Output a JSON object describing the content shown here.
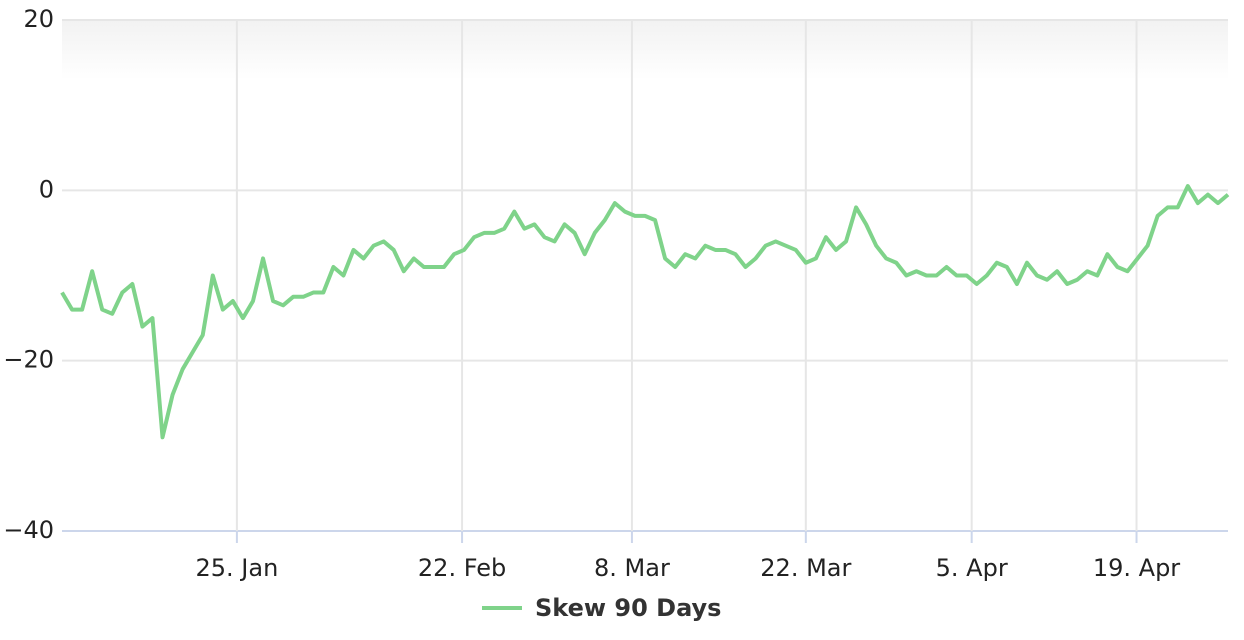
{
  "chart_data": {
    "type": "line",
    "x": [
      0,
      1,
      2,
      3,
      4,
      5,
      6,
      7,
      8,
      9,
      10,
      11,
      12,
      13,
      14,
      15,
      16,
      17,
      18,
      19,
      20,
      21,
      22,
      23,
      24,
      25,
      26,
      27,
      28,
      29,
      30,
      31,
      32,
      33,
      34,
      35,
      36,
      37,
      38,
      39,
      40,
      41,
      42,
      43,
      44,
      45,
      46,
      47,
      48,
      49,
      50,
      51,
      52,
      53,
      54,
      55,
      56,
      57,
      58,
      59,
      60,
      61,
      62,
      63,
      64,
      65,
      66,
      67,
      68,
      69,
      70,
      71,
      72,
      73,
      74,
      75,
      76,
      77,
      78,
      79,
      80,
      81,
      82,
      83,
      84,
      85,
      86,
      87,
      88,
      89,
      90,
      91,
      92,
      93,
      94,
      95,
      96,
      97,
      98,
      99,
      100,
      101,
      102,
      103,
      104,
      105,
      106,
      107,
      108,
      109,
      110,
      111,
      112,
      113,
      114,
      115,
      116
    ],
    "series": [
      {
        "name": "Skew 90 Days",
        "color": "#7fd38a",
        "values": [
          -12,
          -14,
          -14,
          -9.5,
          -14,
          -14.5,
          -12,
          -11,
          -16,
          -15,
          -29,
          -24,
          -21,
          -19,
          -17,
          -10,
          -14,
          -13,
          -15,
          -13,
          -8,
          -13,
          -13.5,
          -12.5,
          -12.5,
          -12,
          -12,
          -9,
          -10,
          -7,
          -8,
          -6.5,
          -6,
          -7,
          -9.5,
          -8,
          -9,
          -9,
          -9,
          -7.5,
          -7,
          -5.5,
          -5,
          -5,
          -4.5,
          -2.5,
          -4.5,
          -4,
          -5.5,
          -6,
          -4,
          -5,
          -7.5,
          -5,
          -3.5,
          -1.5,
          -2.5,
          -3,
          -3,
          -3.5,
          -8,
          -9,
          -7.5,
          -8,
          -6.5,
          -7,
          -7,
          -7.5,
          -9,
          -8,
          -6.5,
          -6,
          -6.5,
          -7,
          -8.5,
          -8,
          -5.5,
          -7,
          -6,
          -2,
          -4,
          -6.5,
          -8,
          -8.5,
          -10,
          -9.5,
          -10,
          -10,
          -9,
          -10,
          -10,
          -11,
          -10,
          -8.5,
          -9,
          -11,
          -8.5,
          -10,
          -10.5,
          -9.5,
          -11,
          -10.5,
          -9.5,
          -10,
          -7.5,
          -9,
          -9.5,
          -8,
          -6.5,
          -3,
          -2,
          -2,
          0.5,
          -1.5,
          -0.5,
          -1.5,
          -0.5
        ]
      }
    ],
    "xlim": [
      0,
      116
    ],
    "xticks": [
      {
        "value": 17.4,
        "label": "25. Jan"
      },
      {
        "value": 39.8,
        "label": "22. Feb"
      },
      {
        "value": 56.7,
        "label": "8. Mar"
      },
      {
        "value": 74,
        "label": "22. Mar"
      },
      {
        "value": 90.5,
        "label": "5. Apr"
      },
      {
        "value": 106.9,
        "label": "19. Apr"
      }
    ],
    "ylim": [
      -40,
      20
    ],
    "yticks": [
      {
        "value": -40,
        "label": "−40"
      },
      {
        "value": -20,
        "label": "−20"
      },
      0,
      20
    ],
    "grid": true,
    "legend": "bottom"
  }
}
